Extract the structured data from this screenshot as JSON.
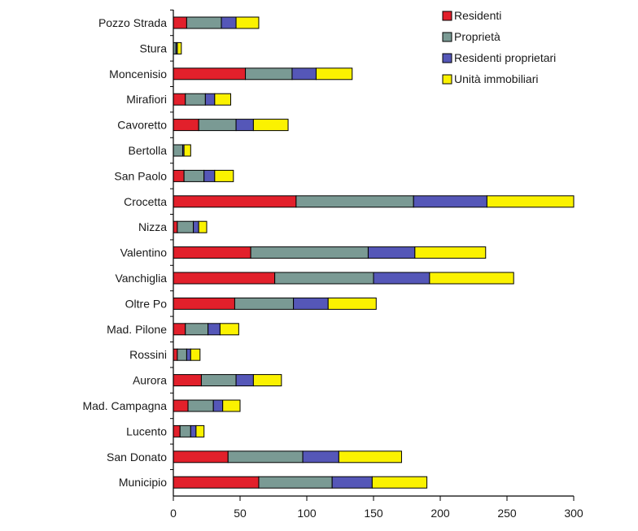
{
  "chart_data": {
    "type": "bar",
    "orientation": "horizontal",
    "stacked": true,
    "categories": [
      "Pozzo Strada",
      "Stura",
      "Moncenisio",
      "Mirafiori",
      "Cavoretto",
      "Bertolla",
      "San Paolo",
      "Crocetta",
      "Nizza",
      "Valentino",
      "Vanchiglia",
      "Oltre Po",
      "Mad. Pilone",
      "Rossini",
      "Aurora",
      "Mad. Campagna",
      "Lucento",
      "San Donato",
      "Municipio"
    ],
    "series": [
      {
        "name": "Residenti",
        "color": "#e2202b",
        "values": [
          10,
          0,
          54,
          9,
          19,
          0,
          8,
          92,
          3,
          58,
          76,
          46,
          9,
          3,
          21,
          11,
          5,
          41,
          64
        ]
      },
      {
        "name": "Proprietà",
        "color": "#7a9a94",
        "values": [
          26,
          2,
          35,
          15,
          28,
          7,
          15,
          88,
          12,
          88,
          74,
          44,
          17,
          7,
          26,
          19,
          8,
          56,
          55
        ]
      },
      {
        "name": "Residenti proprietari",
        "color": "#5557b8",
        "values": [
          11,
          1,
          18,
          7,
          13,
          1,
          8,
          55,
          4,
          35,
          42,
          26,
          9,
          3,
          13,
          7,
          4,
          27,
          30
        ]
      },
      {
        "name": "Unità immobiliari",
        "color": "#fbf200",
        "values": [
          17,
          3,
          27,
          12,
          26,
          5,
          14,
          65,
          6,
          53,
          63,
          36,
          14,
          7,
          21,
          13,
          6,
          47,
          41
        ]
      }
    ],
    "xlim": [
      0,
      300
    ],
    "xticks": [
      "0",
      "50",
      "100",
      "150",
      "200",
      "250",
      "300"
    ],
    "title": "",
    "xlabel": "",
    "ylabel": "",
    "legend_position": "top-right",
    "grid": false
  }
}
